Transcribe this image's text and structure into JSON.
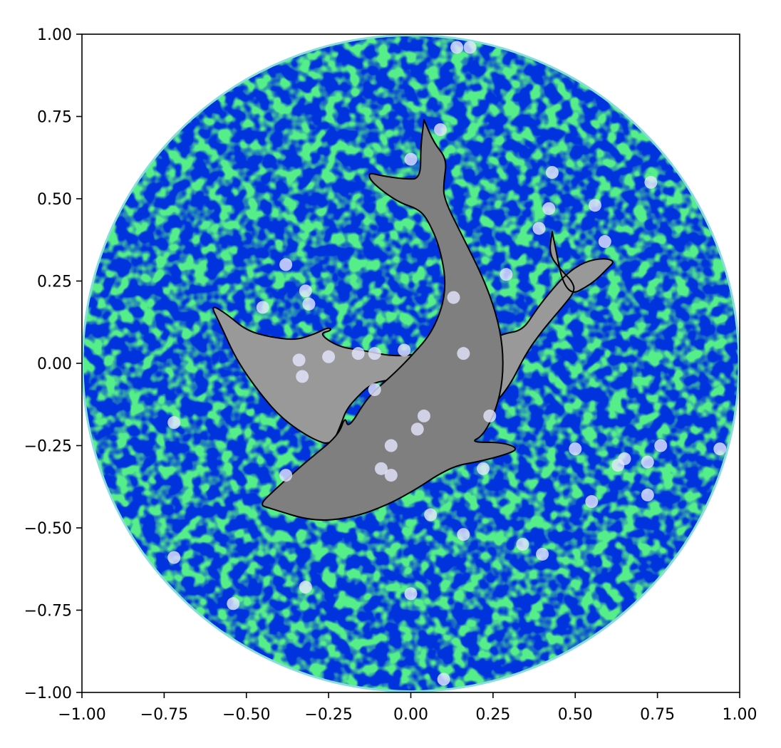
{
  "chart_data": {
    "type": "scatter",
    "title": "",
    "xlabel": "",
    "ylabel": "",
    "xlim": [
      -1.0,
      1.0
    ],
    "ylim": [
      -1.0,
      1.0
    ],
    "grid": false,
    "aspect": "equal",
    "x_ticks": [
      -1.0,
      -0.75,
      -0.5,
      -0.25,
      0.0,
      0.25,
      0.5,
      0.75,
      1.0
    ],
    "y_ticks": [
      -1.0,
      -0.75,
      -0.5,
      -0.25,
      0.0,
      0.25,
      0.5,
      0.75,
      1.0
    ],
    "x_tick_labels": [
      "−1.00",
      "−0.75",
      "−0.50",
      "−0.25",
      "0.00",
      "0.25",
      "0.50",
      "0.75",
      "1.00"
    ],
    "y_tick_labels": [
      "−1.00",
      "−0.75",
      "−0.50",
      "−0.25",
      "0.00",
      "0.25",
      "0.50",
      "0.75",
      "1.00"
    ],
    "background_disc": {
      "center": [
        0.0,
        0.0
      ],
      "radius": 1.0,
      "fill": "noise texture",
      "colors": [
        "#0033dd",
        "#55ee88"
      ],
      "edge_color": "#88dddd"
    },
    "dolphins": [
      {
        "name": "large dolphin",
        "color": "#7f7f7f",
        "edge_color": "#000000",
        "outline": [
          [
            0.04,
            0.74
          ],
          [
            0.07,
            0.67
          ],
          [
            0.11,
            0.62
          ],
          [
            0.1,
            0.55
          ],
          [
            0.1,
            0.5
          ],
          [
            0.16,
            0.38
          ],
          [
            0.22,
            0.26
          ],
          [
            0.26,
            0.15
          ],
          [
            0.28,
            0.05
          ],
          [
            0.28,
            -0.05
          ],
          [
            0.26,
            -0.14
          ],
          [
            0.22,
            -0.22
          ],
          [
            0.18,
            -0.24
          ],
          [
            0.28,
            -0.24
          ],
          [
            0.33,
            -0.26
          ],
          [
            0.28,
            -0.28
          ],
          [
            0.2,
            -0.3
          ],
          [
            0.14,
            -0.31
          ],
          [
            0.08,
            -0.34
          ],
          [
            0.02,
            -0.38
          ],
          [
            -0.07,
            -0.43
          ],
          [
            -0.18,
            -0.47
          ],
          [
            -0.3,
            -0.48
          ],
          [
            -0.43,
            -0.44
          ],
          [
            -0.46,
            -0.43
          ],
          [
            -0.42,
            -0.39
          ],
          [
            -0.32,
            -0.3
          ],
          [
            -0.22,
            -0.22
          ],
          [
            -0.2,
            -0.16
          ],
          [
            -0.19,
            -0.2
          ],
          [
            -0.13,
            -0.1
          ],
          [
            -0.06,
            -0.04
          ],
          [
            0.0,
            0.02
          ],
          [
            0.07,
            0.1
          ],
          [
            0.11,
            0.22
          ],
          [
            0.09,
            0.35
          ],
          [
            0.05,
            0.44
          ],
          [
            0.02,
            0.47
          ],
          [
            -0.04,
            0.49
          ],
          [
            -0.12,
            0.55
          ],
          [
            -0.13,
            0.58
          ],
          [
            -0.09,
            0.57
          ],
          [
            -0.02,
            0.56
          ],
          [
            0.03,
            0.56
          ],
          [
            0.03,
            0.66
          ],
          [
            0.04,
            0.74
          ]
        ]
      },
      {
        "name": "small dolphin",
        "color": "#999999",
        "edge_color": "#000000",
        "outline": [
          [
            0.43,
            0.4
          ],
          [
            0.42,
            0.33
          ],
          [
            0.46,
            0.28
          ],
          [
            0.49,
            0.25
          ],
          [
            0.5,
            0.22
          ],
          [
            0.46,
            0.17
          ],
          [
            0.4,
            0.1
          ],
          [
            0.35,
            0.03
          ],
          [
            0.3,
            -0.07
          ],
          [
            0.24,
            -0.14
          ],
          [
            0.28,
            0.0
          ],
          [
            0.26,
            0.05
          ],
          [
            0.2,
            0.03
          ],
          [
            0.13,
            0.0
          ],
          [
            0.06,
            -0.02
          ],
          [
            -0.01,
            -0.03
          ],
          [
            -0.06,
            -0.05
          ],
          [
            -0.12,
            -0.06
          ],
          [
            -0.18,
            -0.12
          ],
          [
            -0.2,
            -0.15
          ],
          [
            -0.21,
            -0.18
          ],
          [
            -0.24,
            -0.25
          ],
          [
            -0.3,
            -0.23
          ],
          [
            -0.39,
            -0.17
          ],
          [
            -0.46,
            -0.09
          ],
          [
            -0.53,
            0.01
          ],
          [
            -0.58,
            0.12
          ],
          [
            -0.61,
            0.18
          ],
          [
            -0.56,
            0.15
          ],
          [
            -0.5,
            0.1
          ],
          [
            -0.43,
            0.08
          ],
          [
            -0.35,
            0.07
          ],
          [
            -0.29,
            0.09
          ],
          [
            -0.25,
            0.11
          ],
          [
            -0.24,
            0.1
          ],
          [
            -0.28,
            0.09
          ],
          [
            -0.22,
            0.05
          ],
          [
            -0.15,
            0.04
          ],
          [
            -0.05,
            0.02
          ],
          [
            0.04,
            0.03
          ],
          [
            0.13,
            0.04
          ],
          [
            0.22,
            0.06
          ],
          [
            0.28,
            0.09
          ],
          [
            0.34,
            0.1
          ],
          [
            0.38,
            0.16
          ],
          [
            0.41,
            0.2
          ],
          [
            0.47,
            0.27
          ],
          [
            0.53,
            0.31
          ],
          [
            0.59,
            0.32
          ],
          [
            0.62,
            0.31
          ],
          [
            0.6,
            0.29
          ],
          [
            0.55,
            0.24
          ],
          [
            0.47,
            0.2
          ],
          [
            0.43,
            0.4
          ]
        ]
      }
    ],
    "points": {
      "color": "#e6e6ff",
      "alpha": 0.8,
      "x": [
        0.14,
        0.18,
        0.09,
        0.0,
        0.43,
        0.73,
        0.56,
        0.42,
        0.39,
        0.59,
        0.29,
        -0.38,
        -0.32,
        -0.31,
        -0.45,
        0.13,
        0.16,
        -0.02,
        -0.11,
        -0.16,
        -0.25,
        -0.34,
        -0.33,
        -0.11,
        0.04,
        0.02,
        -0.06,
        -0.09,
        -0.06,
        0.24,
        0.22,
        -0.72,
        -0.38,
        0.5,
        0.65,
        0.63,
        0.72,
        0.76,
        0.94,
        0.72,
        0.55,
        0.06,
        0.16,
        0.34,
        0.4,
        -0.72,
        -0.32,
        0.0,
        -0.54,
        0.1
      ],
      "y": [
        0.96,
        0.96,
        0.71,
        0.62,
        0.58,
        0.55,
        0.48,
        0.47,
        0.41,
        0.37,
        0.27,
        0.3,
        0.22,
        0.18,
        0.17,
        0.2,
        0.03,
        0.04,
        0.03,
        0.03,
        0.02,
        0.01,
        -0.04,
        -0.08,
        -0.16,
        -0.2,
        -0.25,
        -0.32,
        -0.34,
        -0.16,
        -0.32,
        -0.18,
        -0.34,
        -0.26,
        -0.29,
        -0.31,
        -0.3,
        -0.25,
        -0.26,
        -0.4,
        -0.42,
        -0.46,
        -0.52,
        -0.55,
        -0.58,
        -0.59,
        -0.68,
        -0.7,
        -0.73,
        -0.96
      ]
    }
  }
}
